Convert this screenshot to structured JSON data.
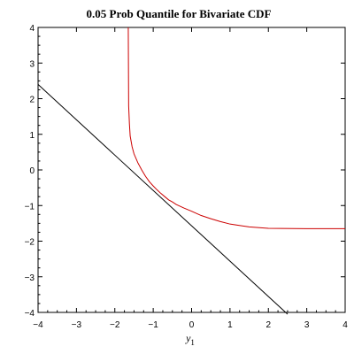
{
  "chart_data": {
    "type": "line",
    "title": "0.05 Prob Quantile for Bivariate CDF",
    "xlabel": "y",
    "xlabel_subscript": "1",
    "ylabel": "",
    "xlim": [
      -4,
      4
    ],
    "ylim": [
      -4,
      4
    ],
    "x_ticks": [
      -4,
      -3,
      -2,
      -1,
      0,
      1,
      2,
      3,
      4
    ],
    "y_ticks": [
      -4,
      -3,
      -2,
      -1,
      0,
      1,
      2,
      3,
      4
    ],
    "grid": false,
    "series": [
      {
        "color": "#cc0000",
        "x": [
          -1.65,
          -1.64,
          -1.62,
          -1.6,
          -1.55,
          -1.5,
          -1.4,
          -1.3,
          -1.2,
          -1.1,
          -1.0,
          -0.9,
          -0.8,
          -0.7,
          -0.6,
          -0.5,
          -0.4,
          -0.2,
          0.0,
          0.25,
          0.5,
          0.75,
          1.0,
          1.5,
          2.0,
          3.0,
          4.0
        ],
        "y": [
          4.0,
          1.8,
          1.3,
          0.95,
          0.65,
          0.45,
          0.2,
          0.0,
          -0.18,
          -0.33,
          -0.45,
          -0.56,
          -0.66,
          -0.75,
          -0.84,
          -0.9,
          -0.97,
          -1.07,
          -1.16,
          -1.28,
          -1.37,
          -1.45,
          -1.52,
          -1.6,
          -1.64,
          -1.65,
          -1.65
        ]
      },
      {
        "color": "#000000",
        "x": [
          -4.0,
          2.5
        ],
        "y": [
          2.4,
          -4.05
        ]
      }
    ]
  }
}
